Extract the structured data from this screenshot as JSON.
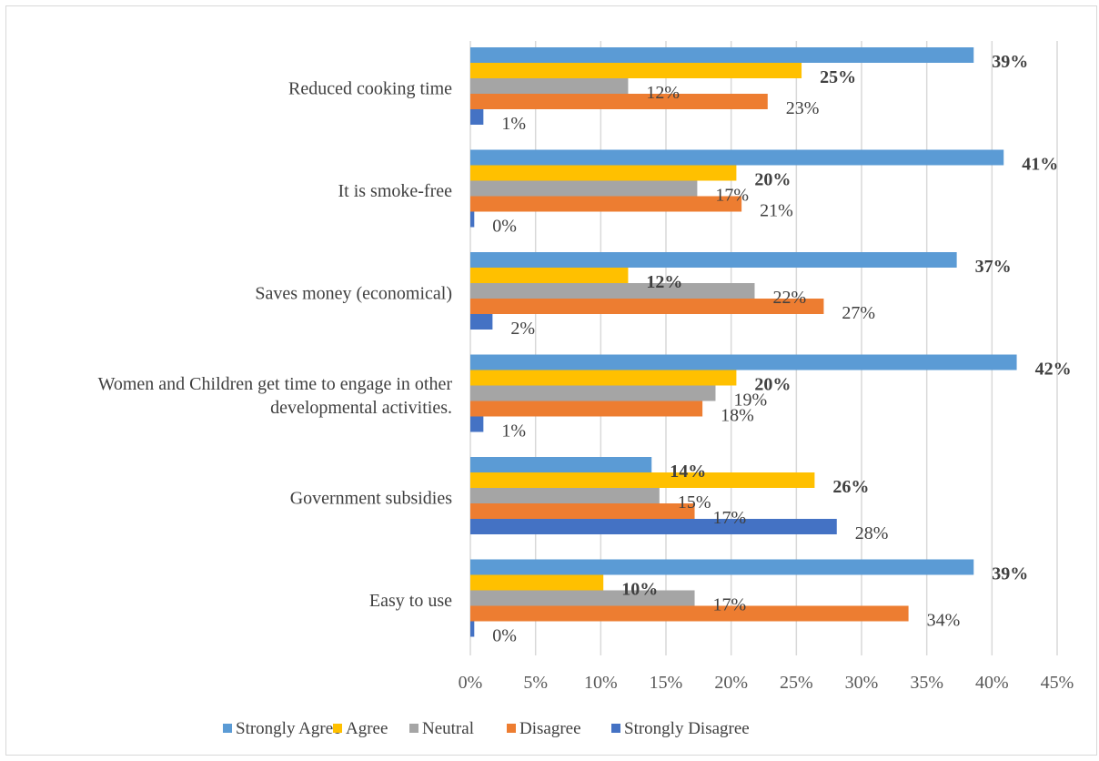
{
  "chart_data": {
    "type": "bar",
    "orientation": "horizontal",
    "title": "",
    "xlabel": "",
    "ylabel": "",
    "xlim": [
      0,
      45
    ],
    "x_ticks": [
      "0%",
      "5%",
      "10%",
      "15%",
      "20%",
      "25%",
      "30%",
      "35%",
      "40%",
      "45%"
    ],
    "grid": "vertical",
    "legend_position": "bottom",
    "categories": [
      [
        "Reduced cooking time"
      ],
      [
        "It is smoke-free"
      ],
      [
        "Saves money (economical)"
      ],
      [
        "Women and Children get time to engage in other",
        "developmental activities."
      ],
      [
        "Government subsidies"
      ],
      [
        "Easy to use"
      ]
    ],
    "series": [
      {
        "name": "Strongly Agree",
        "color": "#5b9bd5",
        "values": [
          38.6,
          40.9,
          37.3,
          41.9,
          13.9,
          38.6
        ],
        "labels": [
          "39%",
          "41%",
          "37%",
          "42%",
          "14%",
          "39%"
        ],
        "bold_labels": true
      },
      {
        "name": "Agree",
        "color": "#ffc000",
        "values": [
          25.4,
          20.4,
          12.1,
          20.4,
          26.4,
          10.2
        ],
        "labels": [
          "25%",
          "20%",
          "12%",
          "20%",
          "26%",
          "10%"
        ],
        "bold_labels": true
      },
      {
        "name": "Neutral",
        "color": "#a5a5a5",
        "values": [
          12.1,
          17.4,
          21.8,
          18.8,
          14.5,
          17.2
        ],
        "labels": [
          "12%",
          "17%",
          "22%",
          "19%",
          "15%",
          "17%"
        ],
        "bold_labels": false
      },
      {
        "name": "Disagree",
        "color": "#ed7d31",
        "values": [
          22.8,
          20.8,
          27.1,
          17.8,
          17.2,
          33.6
        ],
        "labels": [
          "23%",
          "21%",
          "27%",
          "18%",
          "17%",
          "34%"
        ],
        "bold_labels": false
      },
      {
        "name": "Strongly Disagree",
        "color": "#4472c4",
        "values": [
          1.0,
          0.3,
          1.7,
          1.0,
          28.1,
          0.3
        ],
        "labels": [
          "1%",
          "0%",
          "2%",
          "1%",
          "28%",
          "0%"
        ],
        "bold_labels": false
      }
    ]
  }
}
